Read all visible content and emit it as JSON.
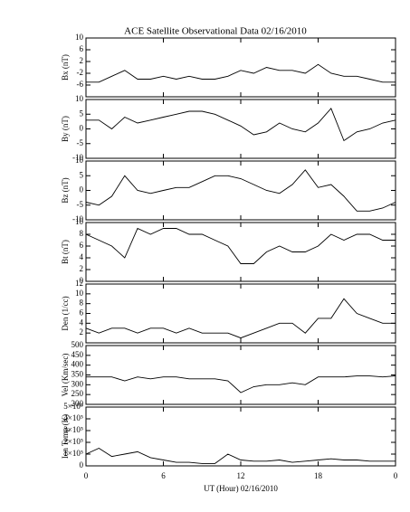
{
  "title": "ACE Satellite Observational Data   02/16/2010",
  "xlabel": "UT (Hour)   02/16/2010",
  "x": [
    0,
    1,
    2,
    3,
    4,
    5,
    6,
    7,
    8,
    9,
    10,
    11,
    12,
    13,
    14,
    15,
    16,
    17,
    18,
    19,
    20,
    21,
    22,
    23,
    24
  ],
  "xlim": [
    0,
    24
  ],
  "xticks": [
    0,
    6,
    12,
    18,
    {
      "value": 24,
      "label": "0"
    }
  ],
  "chart_data": [
    {
      "type": "line",
      "ylabel": "Bx (nT)",
      "color": "#000000",
      "ylim": [
        -10,
        10
      ],
      "yticks": [
        -6,
        -2,
        2,
        6,
        10
      ],
      "values": [
        -5,
        -5,
        -3,
        -1,
        -4,
        -4,
        -3,
        -4,
        -3,
        -4,
        -4,
        -3,
        -1,
        -2,
        0,
        -1,
        -1,
        -2,
        1,
        -2,
        -3,
        -3,
        -4,
        -5,
        -5
      ]
    },
    {
      "type": "line",
      "ylabel": "By (nT)",
      "color": "#000000",
      "ylim": [
        -10,
        10
      ],
      "yticks": [
        -10,
        -5,
        0,
        5,
        10
      ],
      "values": [
        3,
        3,
        0,
        4,
        2,
        3,
        4,
        5,
        6,
        6,
        5,
        3,
        1,
        -2,
        -1,
        2,
        0,
        -1,
        2,
        7,
        -4,
        -1,
        0,
        2,
        3
      ]
    },
    {
      "type": "line",
      "ylabel": "Bz (nT)",
      "color": "#000000",
      "ylim": [
        -10,
        10
      ],
      "yticks": [
        -10,
        -5,
        0,
        5,
        10
      ],
      "values": [
        -4,
        -5,
        -2,
        5,
        0,
        -1,
        0,
        1,
        1,
        3,
        5,
        5,
        4,
        2,
        0,
        -1,
        2,
        7,
        1,
        2,
        -2,
        -7,
        -7,
        -6,
        -4
      ]
    },
    {
      "type": "line",
      "ylabel": "Bt (nT)",
      "color": "#000000",
      "ylim": [
        0,
        10
      ],
      "yticks": [
        0,
        2,
        4,
        6,
        8,
        10
      ],
      "values": [
        8,
        7,
        6,
        4,
        9,
        8,
        9,
        9,
        8,
        8,
        7,
        6,
        3,
        3,
        5,
        6,
        5,
        5,
        6,
        8,
        7,
        8,
        8,
        7,
        7
      ]
    },
    {
      "type": "line",
      "ylabel": "Den (1/cc)",
      "color": "#000000",
      "ylim": [
        0,
        12
      ],
      "yticks": [
        2,
        4,
        6,
        8,
        10,
        12
      ],
      "values": [
        3,
        2,
        3,
        3,
        2,
        3,
        3,
        2,
        3,
        2,
        2,
        2,
        1,
        2,
        3,
        4,
        4,
        2,
        5,
        5,
        9,
        6,
        5,
        4,
        4
      ]
    },
    {
      "type": "line",
      "ylabel": "Vel (Km/sec)",
      "color": "#000000",
      "ylim": [
        200,
        500
      ],
      "yticks": [
        200,
        250,
        300,
        350,
        400,
        450,
        500
      ],
      "values": [
        340,
        340,
        340,
        320,
        340,
        330,
        340,
        340,
        330,
        330,
        330,
        320,
        260,
        290,
        300,
        300,
        310,
        300,
        340,
        340,
        340,
        345,
        345,
        340,
        345
      ]
    },
    {
      "type": "line",
      "ylabel": "Ion Temp (K)",
      "color": "#000000",
      "ylim": [
        0,
        500000
      ],
      "yticks": [
        0,
        {
          "value": 100000,
          "label": "1×10⁵"
        },
        {
          "value": 200000,
          "label": "2×10⁵"
        },
        {
          "value": 300000,
          "label": "3×10⁵"
        },
        {
          "value": 400000,
          "label": "4×10⁵"
        },
        {
          "value": 500000,
          "label": "5×10⁵"
        }
      ],
      "values": [
        100000,
        150000,
        80000,
        100000,
        120000,
        70000,
        50000,
        30000,
        30000,
        20000,
        20000,
        100000,
        50000,
        40000,
        40000,
        50000,
        30000,
        40000,
        50000,
        60000,
        50000,
        50000,
        40000,
        40000,
        40000
      ]
    }
  ]
}
